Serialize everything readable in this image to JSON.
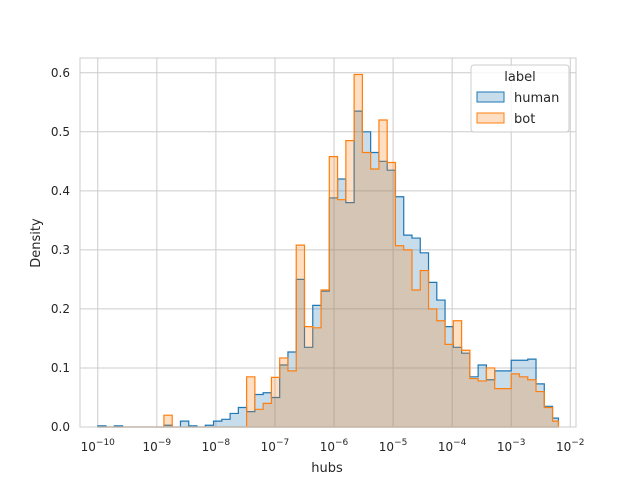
{
  "chart_data": {
    "type": "histogram",
    "xlabel": "hubs",
    "ylabel": "Density",
    "xscale": "log",
    "xlim": [
      5e-11,
      0.0125
    ],
    "ylim": [
      0,
      0.625
    ],
    "grid": true,
    "legend": {
      "title": "label",
      "placement": "top-right"
    },
    "xticks": [
      {
        "value": 1e-10,
        "base": "10",
        "exp": "−10"
      },
      {
        "value": 1e-09,
        "base": "10",
        "exp": "−9"
      },
      {
        "value": 1e-08,
        "base": "10",
        "exp": "−8"
      },
      {
        "value": 1e-07,
        "base": "10",
        "exp": "−7"
      },
      {
        "value": 1e-06,
        "base": "10",
        "exp": "−6"
      },
      {
        "value": 1e-05,
        "base": "10",
        "exp": "−5"
      },
      {
        "value": 0.0001,
        "base": "10",
        "exp": "−4"
      },
      {
        "value": 0.001,
        "base": "10",
        "exp": "−3"
      },
      {
        "value": 0.01,
        "base": "10",
        "exp": "−2"
      }
    ],
    "yticks": [
      {
        "value": 0.0,
        "label": "0.0"
      },
      {
        "value": 0.1,
        "label": "0.1"
      },
      {
        "value": 0.2,
        "label": "0.2"
      },
      {
        "value": 0.3,
        "label": "0.3"
      },
      {
        "value": 0.4,
        "label": "0.4"
      },
      {
        "value": 0.5,
        "label": "0.5"
      },
      {
        "value": 0.6,
        "label": "0.6"
      }
    ],
    "bin_edges_log10": [
      -10.0,
      -9.86,
      -9.72,
      -9.58,
      -9.44,
      -9.3,
      -9.16,
      -9.02,
      -8.88,
      -8.74,
      -8.6,
      -8.46,
      -8.32,
      -8.18,
      -8.04,
      -7.9,
      -7.76,
      -7.62,
      -7.48,
      -7.34,
      -7.2,
      -7.06,
      -6.92,
      -6.78,
      -6.64,
      -6.5,
      -6.36,
      -6.22,
      -6.08,
      -5.94,
      -5.8,
      -5.66,
      -5.52,
      -5.38,
      -5.24,
      -5.1,
      -4.96,
      -4.82,
      -4.68,
      -4.54,
      -4.4,
      -4.26,
      -4.12,
      -3.98,
      -3.84,
      -3.7,
      -3.56,
      -3.42,
      -3.28,
      -3.14,
      -3.0,
      -2.86,
      -2.72,
      -2.58,
      -2.44,
      -2.3,
      -2.2
    ],
    "series": [
      {
        "name": "human",
        "color": "#1f77b4",
        "fill": "rgba(31,119,180,0.25)",
        "values": [
          0.002,
          0.0,
          0.002,
          0.0,
          0.0,
          0.0,
          0.0,
          0.0,
          0.003,
          0.0,
          0.01,
          0.002,
          0.0,
          0.003,
          0.01,
          0.013,
          0.023,
          0.033,
          0.026,
          0.055,
          0.058,
          0.05,
          0.105,
          0.127,
          0.25,
          0.135,
          0.206,
          0.23,
          0.388,
          0.42,
          0.38,
          0.535,
          0.5,
          0.465,
          0.45,
          0.435,
          0.39,
          0.325,
          0.32,
          0.295,
          0.245,
          0.215,
          0.17,
          0.135,
          0.125,
          0.085,
          0.105,
          0.08,
          0.095,
          0.095,
          0.113,
          0.113,
          0.115,
          0.073,
          0.035,
          0.015
        ]
      },
      {
        "name": "bot",
        "color": "#ff7f0e",
        "fill": "rgba(255,127,14,0.25)",
        "values": [
          0.0,
          0.0,
          0.0,
          0.0,
          0.0,
          0.0,
          0.0,
          0.0,
          0.02,
          0.0,
          0.0,
          0.0,
          0.0,
          0.0,
          0.0,
          0.0,
          0.0,
          0.0,
          0.085,
          0.03,
          0.04,
          0.084,
          0.117,
          0.095,
          0.308,
          0.17,
          0.168,
          0.232,
          0.458,
          0.385,
          0.485,
          0.597,
          0.465,
          0.437,
          0.52,
          0.448,
          0.307,
          0.3,
          0.232,
          0.265,
          0.2,
          0.18,
          0.14,
          0.18,
          0.13,
          0.082,
          0.078,
          0.1,
          0.065,
          0.065,
          0.09,
          0.085,
          0.08,
          0.06,
          0.033,
          0.01
        ]
      }
    ]
  }
}
